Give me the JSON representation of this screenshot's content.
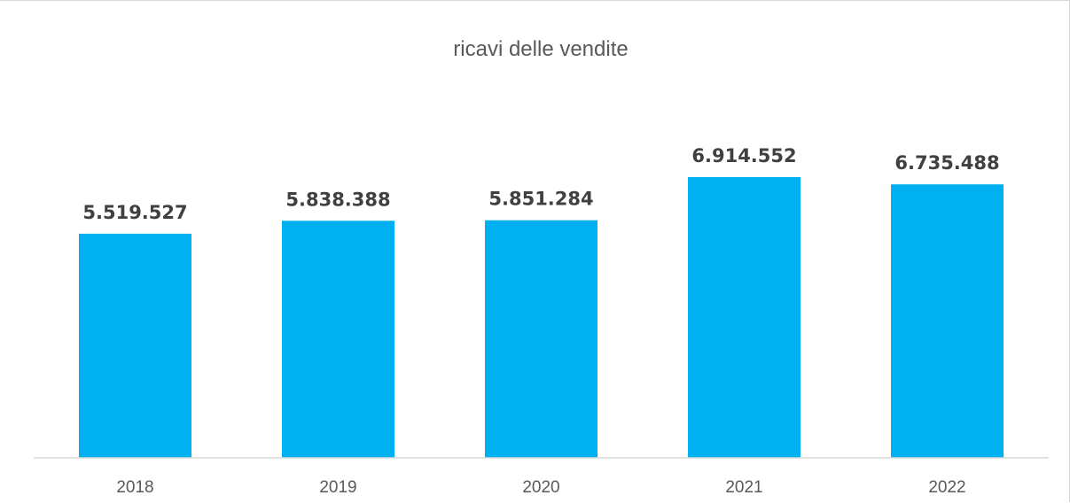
{
  "chart_data": {
    "type": "bar",
    "title": "ricavi delle vendite",
    "categories": [
      "2018",
      "2019",
      "2020",
      "2021",
      "2022"
    ],
    "values": [
      5519527,
      5838388,
      5851284,
      6914552,
      6735488
    ],
    "data_labels": [
      "5.519.527",
      "5.838.388",
      "5.851.284",
      "6.914.552",
      "6.735.488"
    ],
    "xlabel": "",
    "ylabel": "",
    "ylim": [
      0,
      8000000
    ],
    "grid": false,
    "legend": "none",
    "bar_color": "#00B0F0",
    "axis_color": "#d9d9d9"
  }
}
